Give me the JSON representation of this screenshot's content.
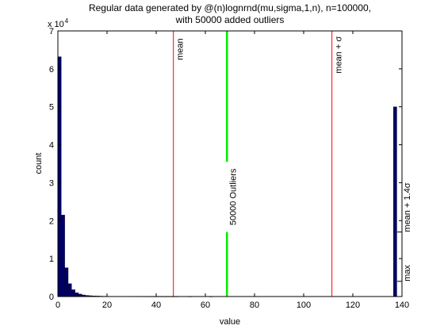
{
  "chart_data": {
    "type": "bar",
    "title_lines": [
      "Regular data generated by @(n)lognrnd(mu,sigma,1,n), n=100000,",
      "with 50000 added outliers"
    ],
    "xlabel": "value",
    "ylabel": "count",
    "y_exponent_label": "x 10",
    "y_exponent_power": "4",
    "xlim": [
      0,
      140
    ],
    "ylim": [
      0,
      70000
    ],
    "xticks": [
      0,
      20,
      40,
      60,
      80,
      100,
      120,
      140
    ],
    "yticks": [
      0,
      10000,
      20000,
      30000,
      40000,
      50000,
      60000,
      70000
    ],
    "ytick_labels": [
      "0",
      "1",
      "2",
      "3",
      "4",
      "5",
      "6",
      "7"
    ],
    "grid": false,
    "bar_color": "#000066",
    "bin_width": 1.4,
    "bins": [
      {
        "x": 0.7,
        "count": 63200
      },
      {
        "x": 2.1,
        "count": 21500
      },
      {
        "x": 3.5,
        "count": 7600
      },
      {
        "x": 4.9,
        "count": 3400
      },
      {
        "x": 6.3,
        "count": 1800
      },
      {
        "x": 7.7,
        "count": 1000
      },
      {
        "x": 9.1,
        "count": 650
      },
      {
        "x": 10.5,
        "count": 420
      },
      {
        "x": 11.9,
        "count": 300
      },
      {
        "x": 13.3,
        "count": 220
      },
      {
        "x": 14.7,
        "count": 170
      },
      {
        "x": 16.1,
        "count": 140
      },
      {
        "x": 17.5,
        "count": 110
      },
      {
        "x": 18.9,
        "count": 90
      },
      {
        "x": 20.3,
        "count": 80
      },
      {
        "x": 21.7,
        "count": 70
      },
      {
        "x": 23.1,
        "count": 60
      },
      {
        "x": 24.5,
        "count": 50
      },
      {
        "x": 25.9,
        "count": 45
      },
      {
        "x": 27.3,
        "count": 40
      },
      {
        "x": 28.7,
        "count": 35
      },
      {
        "x": 30.1,
        "count": 30
      },
      {
        "x": 31.5,
        "count": 28
      },
      {
        "x": 32.9,
        "count": 25
      },
      {
        "x": 34.3,
        "count": 22
      },
      {
        "x": 35.7,
        "count": 20
      },
      {
        "x": 37.1,
        "count": 18
      },
      {
        "x": 38.5,
        "count": 16
      },
      {
        "x": 39.9,
        "count": 15
      },
      {
        "x": 41.3,
        "count": 14
      },
      {
        "x": 42.7,
        "count": 12
      },
      {
        "x": 44.1,
        "count": 11
      },
      {
        "x": 45.5,
        "count": 10
      },
      {
        "x": 46.9,
        "count": 9
      },
      {
        "x": 48.3,
        "count": 8
      },
      {
        "x": 53.9,
        "count": 6
      },
      {
        "x": 62.3,
        "count": 4
      },
      {
        "x": 137.2,
        "count": 50000
      }
    ],
    "reference_lines": [
      {
        "x": 47,
        "label": "mean",
        "color": "#ff0000",
        "label_fraction": 0.89
      },
      {
        "x": 111.5,
        "label": "mean + σ",
        "color": "#ff0000",
        "label_fraction": 0.84
      }
    ],
    "outlier_marker": {
      "x": 68.8,
      "label": "50000 Outliers",
      "color": "#00ee00",
      "ranges": [
        [
          0,
          17000
        ],
        [
          35500,
          70000
        ]
      ]
    },
    "right_edge_labels": [
      {
        "text": "mean + 1.4σ",
        "value": 17000
      },
      {
        "text": "max",
        "value": 4000
      }
    ]
  }
}
